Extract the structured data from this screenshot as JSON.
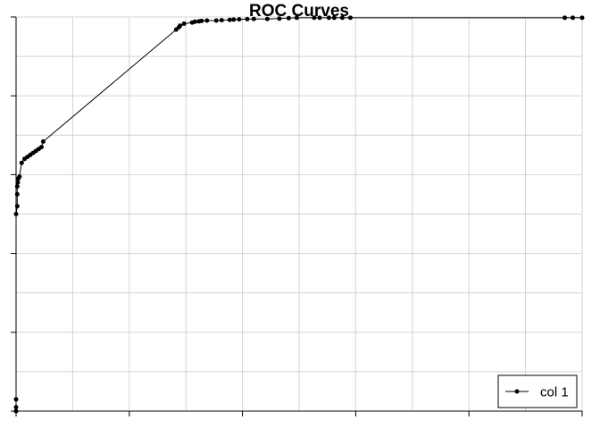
{
  "chart_data": {
    "type": "line",
    "title": "ROC Curves",
    "xlabel": "",
    "ylabel": "",
    "xlim": [
      0,
      1
    ],
    "ylim": [
      0,
      1
    ],
    "grid": true,
    "legend_position": "bottom-right",
    "series": [
      {
        "name": "col 1",
        "color": "#000000",
        "marker": "dot",
        "x": [
          0,
          0,
          0,
          0,
          0.002,
          0.002,
          0.002,
          0.003,
          0.004,
          0.006,
          0.01,
          0.015,
          0.02,
          0.025,
          0.03,
          0.035,
          0.04,
          0.045,
          0.048,
          0.2828,
          0.2876,
          0.2898,
          0.2969,
          0.3111,
          0.3159,
          0.323,
          0.3277,
          0.3372,
          0.3538,
          0.3633,
          0.3774,
          0.3846,
          0.3941,
          0.4083,
          0.4201,
          0.4438,
          0.4652,
          0.4817,
          0.4959,
          0.5267,
          0.5362,
          0.5527,
          0.5622,
          0.5764,
          0.5906,
          0.9693,
          0.9835,
          1.0
        ],
        "y": [
          0,
          0.01,
          0.03,
          0.5,
          0.52,
          0.55,
          0.57,
          0.58,
          0.59,
          0.595,
          0.63,
          0.64,
          0.645,
          0.65,
          0.655,
          0.66,
          0.665,
          0.67,
          0.684,
          0.968,
          0.974,
          0.978,
          0.983,
          0.986,
          0.988,
          0.989,
          0.99,
          0.991,
          0.991,
          0.9918,
          0.9928,
          0.9935,
          0.994,
          0.9945,
          0.995,
          0.995,
          0.996,
          0.997,
          0.998,
          0.998,
          0.998,
          0.998,
          0.998,
          0.998,
          0.998,
          0.998,
          0.998,
          0.998
        ]
      }
    ]
  }
}
